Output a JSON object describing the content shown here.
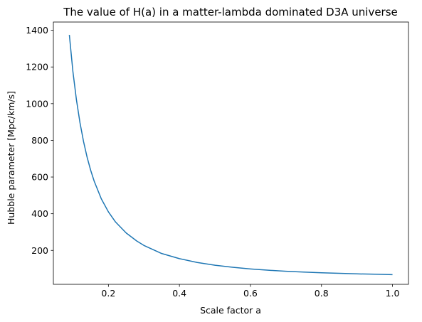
{
  "chart_data": {
    "type": "line",
    "title": "The value of H(a) in a matter-lambda dominated D3A universe",
    "xlabel": "Scale factor a",
    "ylabel": "Hubble parameter [Mpc/km/s]",
    "xlim": [
      0.045,
      1.045
    ],
    "ylim": [
      15,
      1445
    ],
    "xticks": [
      0.2,
      0.4,
      0.6,
      0.8,
      1.0
    ],
    "xtick_labels": [
      "0.2",
      "0.4",
      "0.6",
      "0.8",
      "1.0"
    ],
    "yticks": [
      200,
      400,
      600,
      800,
      1000,
      1200,
      1400
    ],
    "ytick_labels": [
      "200",
      "400",
      "600",
      "800",
      "1000",
      "1200",
      "1400"
    ],
    "grid": false,
    "series": [
      {
        "color": "#1f77b4",
        "x": [
          0.09,
          0.1,
          0.11,
          0.12,
          0.13,
          0.14,
          0.15,
          0.16,
          0.18,
          0.2,
          0.22,
          0.25,
          0.28,
          0.3,
          0.35,
          0.4,
          0.45,
          0.5,
          0.55,
          0.6,
          0.65,
          0.7,
          0.75,
          0.8,
          0.85,
          0.9,
          0.95,
          1.0
        ],
        "y": [
          1375,
          1175,
          1020,
          895,
          793,
          708,
          637,
          577,
          481,
          410,
          355,
          295,
          251,
          227,
          183,
          155,
          134,
          119,
          108,
          99,
          92,
          86,
          82,
          78,
          75,
          72,
          70,
          68
        ]
      }
    ]
  }
}
